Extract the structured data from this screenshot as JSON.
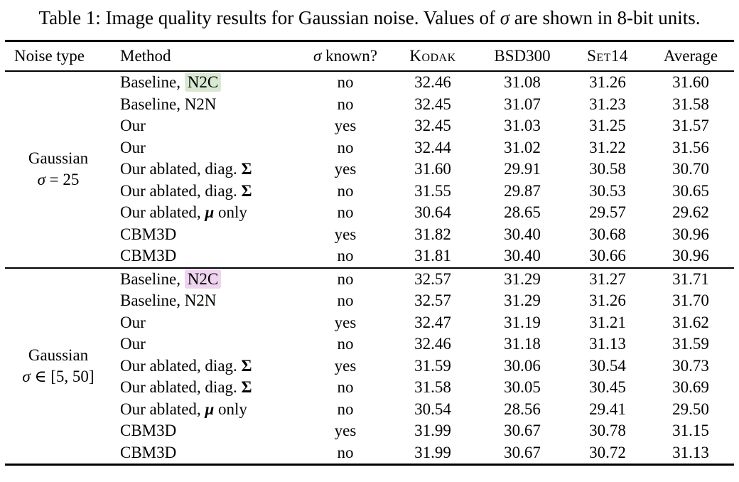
{
  "colors": {
    "highlight_green": "#d9e8d3",
    "highlight_pink": "#eed4ee",
    "rule": "#000000",
    "text": "#000000",
    "background": "#ffffff"
  },
  "caption": {
    "parts": [
      {
        "t": "Table 1: Image quality results for Gaussian noise. Values of ",
        "s": "plain"
      },
      {
        "t": "σ",
        "s": "it"
      },
      {
        "t": " are shown in 8-bit units.",
        "s": "plain"
      }
    ]
  },
  "table": {
    "headers": [
      {
        "key": "noise",
        "parts": [
          {
            "t": "Noise type",
            "s": "plain"
          }
        ]
      },
      {
        "key": "method",
        "parts": [
          {
            "t": "Method",
            "s": "plain"
          }
        ]
      },
      {
        "key": "sigma",
        "parts": [
          {
            "t": "σ",
            "s": "it"
          },
          {
            "t": " known?",
            "s": "plain"
          }
        ]
      },
      {
        "key": "kodak",
        "parts": [
          {
            "t": "Kodak",
            "s": "sc"
          }
        ]
      },
      {
        "key": "bsd",
        "parts": [
          {
            "t": "BSD300",
            "s": "plain"
          }
        ]
      },
      {
        "key": "set",
        "parts": [
          {
            "t": "Set14",
            "s": "sc"
          }
        ]
      },
      {
        "key": "avg",
        "parts": [
          {
            "t": "Average",
            "s": "plain"
          }
        ]
      }
    ],
    "sections": [
      {
        "noise": {
          "line1": "Gaussian",
          "line2_parts": [
            {
              "t": "σ",
              "s": "it"
            },
            {
              "t": " = 25",
              "s": "plain"
            }
          ]
        },
        "rows": [
          {
            "method": [
              {
                "t": "Baseline, ",
                "s": "plain"
              },
              {
                "t": "N2C",
                "s": "hlg"
              }
            ],
            "sigma_known": "no",
            "kodak": "32.46",
            "bsd300": "31.08",
            "set14": "31.26",
            "average": "31.60"
          },
          {
            "method": [
              {
                "t": "Baseline, N2N",
                "s": "plain"
              }
            ],
            "sigma_known": "no",
            "kodak": "32.45",
            "bsd300": "31.07",
            "set14": "31.23",
            "average": "31.58"
          },
          {
            "method": [
              {
                "t": "Our",
                "s": "plain"
              }
            ],
            "sigma_known": "yes",
            "kodak": "32.45",
            "bsd300": "31.03",
            "set14": "31.25",
            "average": "31.57"
          },
          {
            "method": [
              {
                "t": "Our",
                "s": "plain"
              }
            ],
            "sigma_known": "no",
            "kodak": "32.44",
            "bsd300": "31.02",
            "set14": "31.22",
            "average": "31.56"
          },
          {
            "method": [
              {
                "t": "Our ablated, diag. ",
                "s": "plain"
              },
              {
                "t": "Σ",
                "s": "b"
              }
            ],
            "sigma_known": "yes",
            "kodak": "31.60",
            "bsd300": "29.91",
            "set14": "30.58",
            "average": "30.70"
          },
          {
            "method": [
              {
                "t": "Our ablated, diag. ",
                "s": "plain"
              },
              {
                "t": "Σ",
                "s": "b"
              }
            ],
            "sigma_known": "no",
            "kodak": "31.55",
            "bsd300": "29.87",
            "set14": "30.53",
            "average": "30.65"
          },
          {
            "method": [
              {
                "t": "Our ablated, ",
                "s": "plain"
              },
              {
                "t": "μ",
                "s": "bi"
              },
              {
                "t": " only",
                "s": "plain"
              }
            ],
            "sigma_known": "no",
            "kodak": "30.64",
            "bsd300": "28.65",
            "set14": "29.57",
            "average": "29.62"
          },
          {
            "method": [
              {
                "t": "CBM3D",
                "s": "plain"
              }
            ],
            "sigma_known": "yes",
            "kodak": "31.82",
            "bsd300": "30.40",
            "set14": "30.68",
            "average": "30.96"
          },
          {
            "method": [
              {
                "t": "CBM3D",
                "s": "plain"
              }
            ],
            "sigma_known": "no",
            "kodak": "31.81",
            "bsd300": "30.40",
            "set14": "30.66",
            "average": "30.96"
          }
        ]
      },
      {
        "noise": {
          "line1": "Gaussian",
          "line2_parts": [
            {
              "t": "σ",
              "s": "it"
            },
            {
              "t": " ∈ [5, 50]",
              "s": "plain"
            }
          ]
        },
        "rows": [
          {
            "method": [
              {
                "t": "Baseline, ",
                "s": "plain"
              },
              {
                "t": "N2C",
                "s": "hlp"
              }
            ],
            "sigma_known": "no",
            "kodak": "32.57",
            "bsd300": "31.29",
            "set14": "31.27",
            "average": "31.71"
          },
          {
            "method": [
              {
                "t": "Baseline, N2N",
                "s": "plain"
              }
            ],
            "sigma_known": "no",
            "kodak": "32.57",
            "bsd300": "31.29",
            "set14": "31.26",
            "average": "31.70"
          },
          {
            "method": [
              {
                "t": "Our",
                "s": "plain"
              }
            ],
            "sigma_known": "yes",
            "kodak": "32.47",
            "bsd300": "31.19",
            "set14": "31.21",
            "average": "31.62"
          },
          {
            "method": [
              {
                "t": "Our",
                "s": "plain"
              }
            ],
            "sigma_known": "no",
            "kodak": "32.46",
            "bsd300": "31.18",
            "set14": "31.13",
            "average": "31.59"
          },
          {
            "method": [
              {
                "t": "Our ablated, diag. ",
                "s": "plain"
              },
              {
                "t": "Σ",
                "s": "b"
              }
            ],
            "sigma_known": "yes",
            "kodak": "31.59",
            "bsd300": "30.06",
            "set14": "30.54",
            "average": "30.73"
          },
          {
            "method": [
              {
                "t": "Our ablated, diag. ",
                "s": "plain"
              },
              {
                "t": "Σ",
                "s": "b"
              }
            ],
            "sigma_known": "no",
            "kodak": "31.58",
            "bsd300": "30.05",
            "set14": "30.45",
            "average": "30.69"
          },
          {
            "method": [
              {
                "t": "Our ablated, ",
                "s": "plain"
              },
              {
                "t": "μ",
                "s": "bi"
              },
              {
                "t": " only",
                "s": "plain"
              }
            ],
            "sigma_known": "no",
            "kodak": "30.54",
            "bsd300": "28.56",
            "set14": "29.41",
            "average": "29.50"
          },
          {
            "method": [
              {
                "t": "CBM3D",
                "s": "plain"
              }
            ],
            "sigma_known": "yes",
            "kodak": "31.99",
            "bsd300": "30.67",
            "set14": "30.78",
            "average": "31.15"
          },
          {
            "method": [
              {
                "t": "CBM3D",
                "s": "plain"
              }
            ],
            "sigma_known": "no",
            "kodak": "31.99",
            "bsd300": "30.67",
            "set14": "30.72",
            "average": "31.13"
          }
        ]
      }
    ]
  }
}
